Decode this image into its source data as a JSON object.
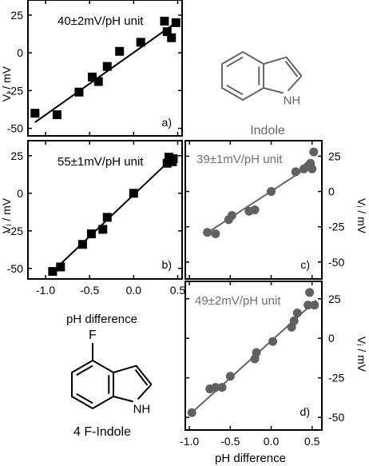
{
  "chart_data": [
    {
      "id": "a",
      "type": "scatter",
      "panel_label": "a)",
      "annotation": "40±2mV/pH unit",
      "ylabel": "Vᵢ / mV",
      "xlabel": "",
      "xlim": [
        -1.2,
        0.55
      ],
      "ylim": [
        -55,
        35
      ],
      "yticks": [
        25,
        0,
        -25,
        -50
      ],
      "ytick_labels": [
        "25",
        "0",
        "-25",
        "-50"
      ],
      "xticks": [
        -1.0,
        -0.5,
        0.0,
        0.5
      ],
      "xtick_labels": [],
      "marker": "square",
      "color": "#000000",
      "points": [
        {
          "x": -1.12,
          "y": -40
        },
        {
          "x": -0.87,
          "y": -41
        },
        {
          "x": -0.62,
          "y": -26
        },
        {
          "x": -0.47,
          "y": -16
        },
        {
          "x": -0.4,
          "y": -19
        },
        {
          "x": -0.3,
          "y": -9
        },
        {
          "x": -0.16,
          "y": 1
        },
        {
          "x": 0.08,
          "y": 7
        },
        {
          "x": 0.35,
          "y": 21
        },
        {
          "x": 0.38,
          "y": 14
        },
        {
          "x": 0.43,
          "y": 10
        },
        {
          "x": 0.48,
          "y": 20
        }
      ],
      "fit": [
        [
          -1.12,
          -46
        ],
        [
          0.48,
          20
        ]
      ]
    },
    {
      "id": "b",
      "type": "scatter",
      "panel_label": "b)",
      "annotation": "55±1mV/pH unit",
      "ylabel": "Vᵢ / mV",
      "xlabel": "pH difference",
      "xlim": [
        -1.2,
        0.55
      ],
      "ylim": [
        -57,
        35
      ],
      "yticks": [
        25,
        0,
        -25,
        -50
      ],
      "ytick_labels": [
        "25",
        "0",
        "-25",
        "-50"
      ],
      "xticks": [
        -1.0,
        -0.5,
        0.0,
        0.5
      ],
      "xtick_labels": [
        "-1.0",
        "-0.5",
        "0.0",
        "0.5"
      ],
      "marker": "square",
      "color": "#000000",
      "points": [
        {
          "x": -0.92,
          "y": -52
        },
        {
          "x": -0.83,
          "y": -49
        },
        {
          "x": -0.58,
          "y": -34
        },
        {
          "x": -0.48,
          "y": -27
        },
        {
          "x": -0.35,
          "y": -24
        },
        {
          "x": -0.3,
          "y": -16
        },
        {
          "x": 0.0,
          "y": 0
        },
        {
          "x": 0.38,
          "y": 20
        },
        {
          "x": 0.4,
          "y": 24
        },
        {
          "x": 0.44,
          "y": 21
        },
        {
          "x": 0.45,
          "y": 23
        }
      ],
      "fit": [
        [
          -0.92,
          -52
        ],
        [
          0.45,
          24
        ]
      ]
    },
    {
      "id": "c",
      "type": "scatter",
      "panel_label": "c)",
      "annotation": "39±1mV/pH unit",
      "ylabel": "Vᵢ / mV",
      "xlabel": "",
      "xlim": [
        -1.05,
        0.62
      ],
      "ylim": [
        -62,
        36
      ],
      "yticks": [
        25,
        0,
        -25,
        -50
      ],
      "ytick_labels": [
        "25",
        "0",
        "-25",
        "-50"
      ],
      "xticks": [
        -1.0,
        -0.5,
        0.0,
        0.5
      ],
      "xtick_labels": [],
      "marker": "circle",
      "color": "#606060",
      "points": [
        {
          "x": -0.78,
          "y": -29
        },
        {
          "x": -0.68,
          "y": -30
        },
        {
          "x": -0.52,
          "y": -20
        },
        {
          "x": -0.48,
          "y": -17
        },
        {
          "x": -0.27,
          "y": -14
        },
        {
          "x": -0.2,
          "y": -13
        },
        {
          "x": 0.0,
          "y": 0
        },
        {
          "x": 0.3,
          "y": 14
        },
        {
          "x": 0.4,
          "y": 16
        },
        {
          "x": 0.45,
          "y": 18
        },
        {
          "x": 0.48,
          "y": 20
        },
        {
          "x": 0.5,
          "y": 16
        },
        {
          "x": 0.52,
          "y": 28
        }
      ],
      "fit": [
        [
          -0.8,
          -30
        ],
        [
          0.5,
          19
        ]
      ]
    },
    {
      "id": "d",
      "type": "scatter",
      "panel_label": "d)",
      "annotation": "49±2mV/pH unit",
      "ylabel": "Vᵢ / mV",
      "xlabel": "pH difference",
      "xlim": [
        -1.05,
        0.62
      ],
      "ylim": [
        -58,
        36
      ],
      "yticks": [
        25,
        0,
        -25,
        -50
      ],
      "ytick_labels": [
        "25",
        "0",
        "-25",
        "-50"
      ],
      "xticks": [
        -1.0,
        -0.5,
        0.0,
        0.5
      ],
      "xtick_labels": [
        "-1.0",
        "-0.5",
        "0.0",
        "0.5"
      ],
      "marker": "circle",
      "color": "#606060",
      "points": [
        {
          "x": -0.97,
          "y": -47
        },
        {
          "x": -0.75,
          "y": -32
        },
        {
          "x": -0.68,
          "y": -31
        },
        {
          "x": -0.6,
          "y": -31
        },
        {
          "x": -0.5,
          "y": -24
        },
        {
          "x": -0.2,
          "y": -13
        },
        {
          "x": -0.18,
          "y": -9
        },
        {
          "x": 0.02,
          "y": -2
        },
        {
          "x": 0.25,
          "y": 7
        },
        {
          "x": 0.28,
          "y": 11
        },
        {
          "x": 0.32,
          "y": 16
        },
        {
          "x": 0.45,
          "y": 21
        },
        {
          "x": 0.47,
          "y": 29
        },
        {
          "x": 0.53,
          "y": 21
        }
      ],
      "fit": [
        [
          -0.97,
          -47
        ],
        [
          0.55,
          24
        ]
      ]
    }
  ],
  "molecules": [
    {
      "name": "Indole",
      "atom_label": "NH",
      "substituent": ""
    },
    {
      "name": "4 F-Indole",
      "atom_label": "NH",
      "substituent": "F"
    }
  ]
}
